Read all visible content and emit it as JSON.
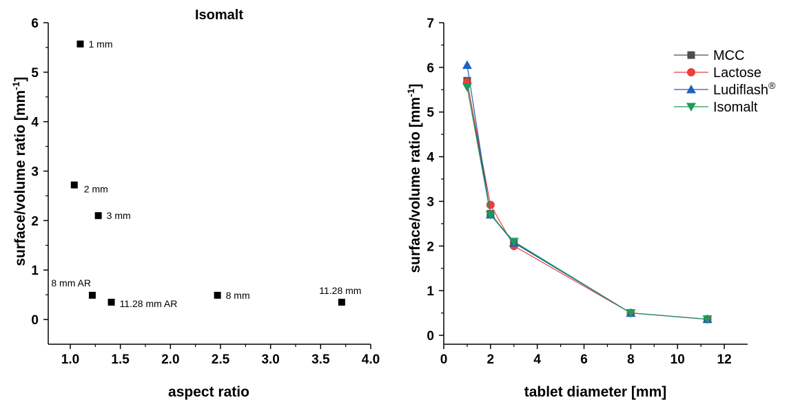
{
  "chart_data": [
    {
      "type": "scatter",
      "title": "Isomalt",
      "xlabel": "aspect ratio",
      "ylabel": "surface/volume ratio [mm",
      "ylabel_sup": "-1",
      "ylabel_end": "]",
      "xlim": [
        0.78,
        4.0
      ],
      "ylim": [
        -0.5,
        6.0
      ],
      "xticks": [
        1.0,
        1.5,
        2.0,
        2.5,
        3.0,
        3.5,
        4.0
      ],
      "xtick_labels": [
        "1.0",
        "1.5",
        "2.0",
        "2.5",
        "3.0",
        "3.5",
        "4.0"
      ],
      "yticks": [
        0,
        1,
        2,
        3,
        4,
        5,
        6
      ],
      "ytick_labels": [
        "0",
        "1",
        "2",
        "3",
        "4",
        "5",
        "6"
      ],
      "grid": false,
      "marker_color": "#000000",
      "points": [
        {
          "x": 1.1,
          "y": 5.57,
          "label": "1 mm",
          "label_pos": "right"
        },
        {
          "x": 1.04,
          "y": 2.72,
          "label": "2 mm",
          "label_pos": "below-right"
        },
        {
          "x": 1.28,
          "y": 2.1,
          "label": "3 mm",
          "label_pos": "right"
        },
        {
          "x": 1.22,
          "y": 0.49,
          "label": "8 mm AR",
          "label_pos": "above-left"
        },
        {
          "x": 1.41,
          "y": 0.35,
          "label": "11.28 mm AR",
          "label_pos": "right"
        },
        {
          "x": 2.47,
          "y": 0.49,
          "label": "8 mm",
          "label_pos": "right"
        },
        {
          "x": 3.71,
          "y": 0.35,
          "label": "11.28 mm",
          "label_pos": "above"
        }
      ]
    },
    {
      "type": "line",
      "title": "",
      "xlabel": "tablet diameter [mm]",
      "ylabel": "surface/volume ratio [mm",
      "ylabel_sup": "-1",
      "ylabel_end": "]",
      "xlim": [
        0,
        13
      ],
      "ylim": [
        -0.2,
        7
      ],
      "xticks": [
        0,
        2,
        4,
        6,
        8,
        10,
        12
      ],
      "xtick_labels": [
        "0",
        "2",
        "4",
        "6",
        "8",
        "10",
        "12"
      ],
      "yticks": [
        0,
        1,
        2,
        3,
        4,
        5,
        6,
        7
      ],
      "ytick_labels": [
        "0",
        "1",
        "2",
        "3",
        "4",
        "5",
        "6",
        "7"
      ],
      "grid": false,
      "legend_position": "top-right",
      "x": [
        1,
        2,
        3,
        8,
        11.28
      ],
      "series": [
        {
          "name": "MCC",
          "sup": "",
          "color": "#4d4d4d",
          "marker": "square",
          "values": [
            5.7,
            2.72,
            2.08,
            0.5,
            0.36
          ]
        },
        {
          "name": "Lactose",
          "sup": "",
          "color": "#e8403a",
          "marker": "circle",
          "values": [
            5.67,
            2.92,
            2.0,
            0.5,
            0.36
          ]
        },
        {
          "name": "Ludiflash",
          "sup": "®",
          "color": "#1f5fbf",
          "marker": "triangle-up",
          "values": [
            6.05,
            2.7,
            2.07,
            0.5,
            0.36
          ]
        },
        {
          "name": "Isomalt",
          "sup": "",
          "color": "#1f9a57",
          "marker": "triangle-down",
          "values": [
            5.56,
            2.7,
            2.1,
            0.5,
            0.36
          ]
        }
      ]
    }
  ]
}
